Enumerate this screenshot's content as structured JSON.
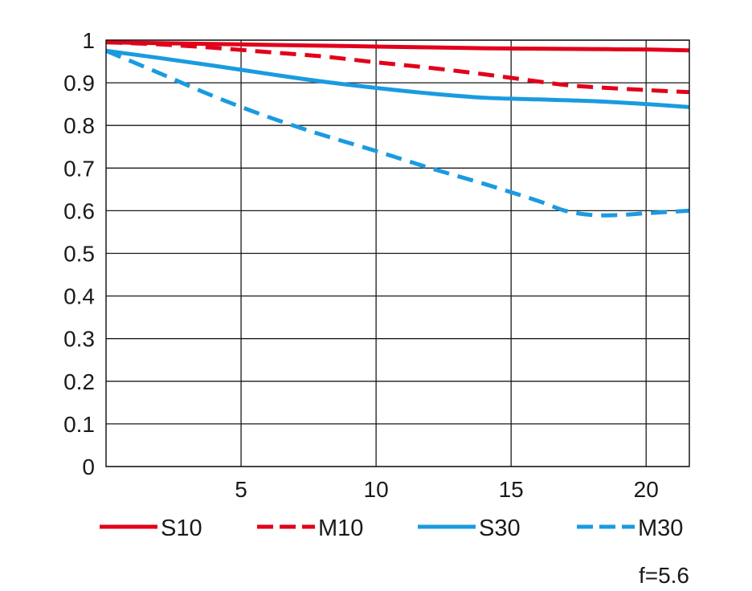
{
  "chart_data": {
    "type": "line",
    "title": "",
    "xlabel": "",
    "ylabel": "",
    "xlim": [
      0,
      21.6
    ],
    "ylim": [
      0,
      1
    ],
    "grid": true,
    "legend_position": "bottom",
    "x_ticks": [
      {
        "value": 5,
        "label": "5"
      },
      {
        "value": 10,
        "label": "10"
      },
      {
        "value": 15,
        "label": "15"
      },
      {
        "value": 20,
        "label": "20"
      }
    ],
    "y_ticks": [
      {
        "value": 0,
        "label": "0"
      },
      {
        "value": 0.1,
        "label": "0.1"
      },
      {
        "value": 0.2,
        "label": "0.2"
      },
      {
        "value": 0.3,
        "label": "0.3"
      },
      {
        "value": 0.4,
        "label": "0.4"
      },
      {
        "value": 0.5,
        "label": "0.5"
      },
      {
        "value": 0.6,
        "label": "0.6"
      },
      {
        "value": 0.7,
        "label": "0.7"
      },
      {
        "value": 0.8,
        "label": "0.8"
      },
      {
        "value": 0.9,
        "label": "0.9"
      },
      {
        "value": 1,
        "label": "1"
      }
    ],
    "series": [
      {
        "name": "S10",
        "color": "#e2001a",
        "dashed": false,
        "x": [
          0,
          2,
          4,
          6,
          8,
          10,
          12,
          14,
          16,
          18,
          20,
          21.6
        ],
        "y": [
          0.995,
          0.993,
          0.991,
          0.989,
          0.987,
          0.985,
          0.983,
          0.981,
          0.98,
          0.979,
          0.978,
          0.976
        ]
      },
      {
        "name": "M10",
        "color": "#e2001a",
        "dashed": true,
        "x": [
          0,
          2,
          4,
          6,
          8,
          10,
          12,
          14,
          16,
          17,
          18,
          20,
          21.6
        ],
        "y": [
          0.995,
          0.99,
          0.982,
          0.972,
          0.962,
          0.948,
          0.935,
          0.92,
          0.903,
          0.895,
          0.89,
          0.883,
          0.878
        ]
      },
      {
        "name": "S30",
        "color": "#1a9be0",
        "dashed": false,
        "x": [
          0,
          2,
          4,
          6,
          8,
          10,
          12,
          14,
          16,
          18,
          20,
          21.6
        ],
        "y": [
          0.975,
          0.958,
          0.94,
          0.921,
          0.903,
          0.888,
          0.875,
          0.865,
          0.861,
          0.857,
          0.85,
          0.843
        ]
      },
      {
        "name": "M30",
        "color": "#1a9be0",
        "dashed": true,
        "x": [
          0,
          2,
          4,
          6,
          8,
          10,
          12,
          14,
          16,
          17,
          18,
          19,
          20,
          21.6
        ],
        "y": [
          0.975,
          0.922,
          0.868,
          0.82,
          0.778,
          0.74,
          0.7,
          0.663,
          0.623,
          0.6,
          0.59,
          0.59,
          0.594,
          0.6
        ]
      }
    ],
    "annotation": "f=5.6"
  }
}
